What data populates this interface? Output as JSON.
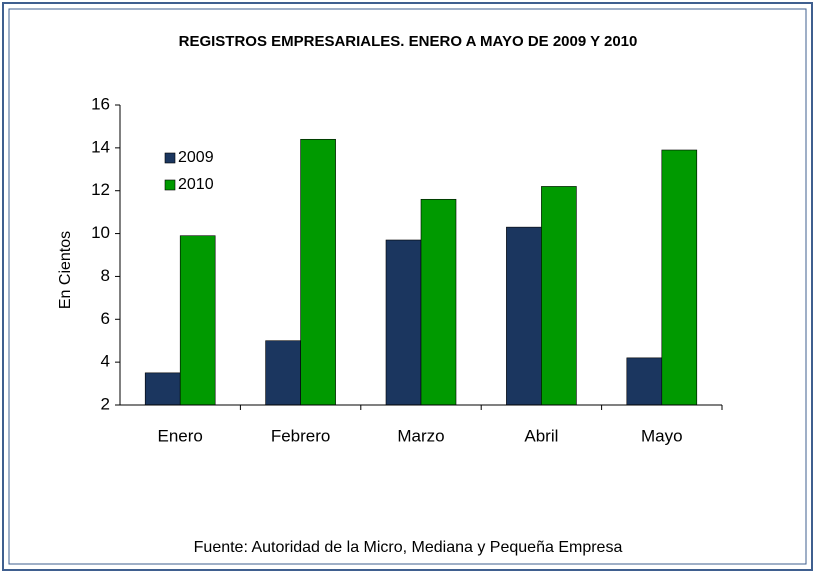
{
  "chart_data": {
    "type": "bar",
    "title": "REGISTROS EMPRESARIALES.  ENERO A MAYO DE 2009 Y 2010",
    "y_label": "En Cientos",
    "source": "Fuente: Autoridad de la Micro, Mediana y Pequeña Empresa",
    "categories": [
      "Enero",
      "Febrero",
      "Marzo",
      "Abril",
      "Mayo"
    ],
    "series": [
      {
        "name": "2009",
        "color": "#1b365f",
        "values": [
          3.5,
          5.0,
          9.7,
          10.3,
          4.2
        ]
      },
      {
        "name": "2010",
        "color": "#009a00",
        "values": [
          9.9,
          14.4,
          11.6,
          12.2,
          13.9
        ]
      }
    ],
    "ylim": [
      2,
      16
    ],
    "yticks": [
      2,
      4,
      6,
      8,
      10,
      12,
      14,
      16
    ],
    "grid": false,
    "legend": "upper left"
  }
}
